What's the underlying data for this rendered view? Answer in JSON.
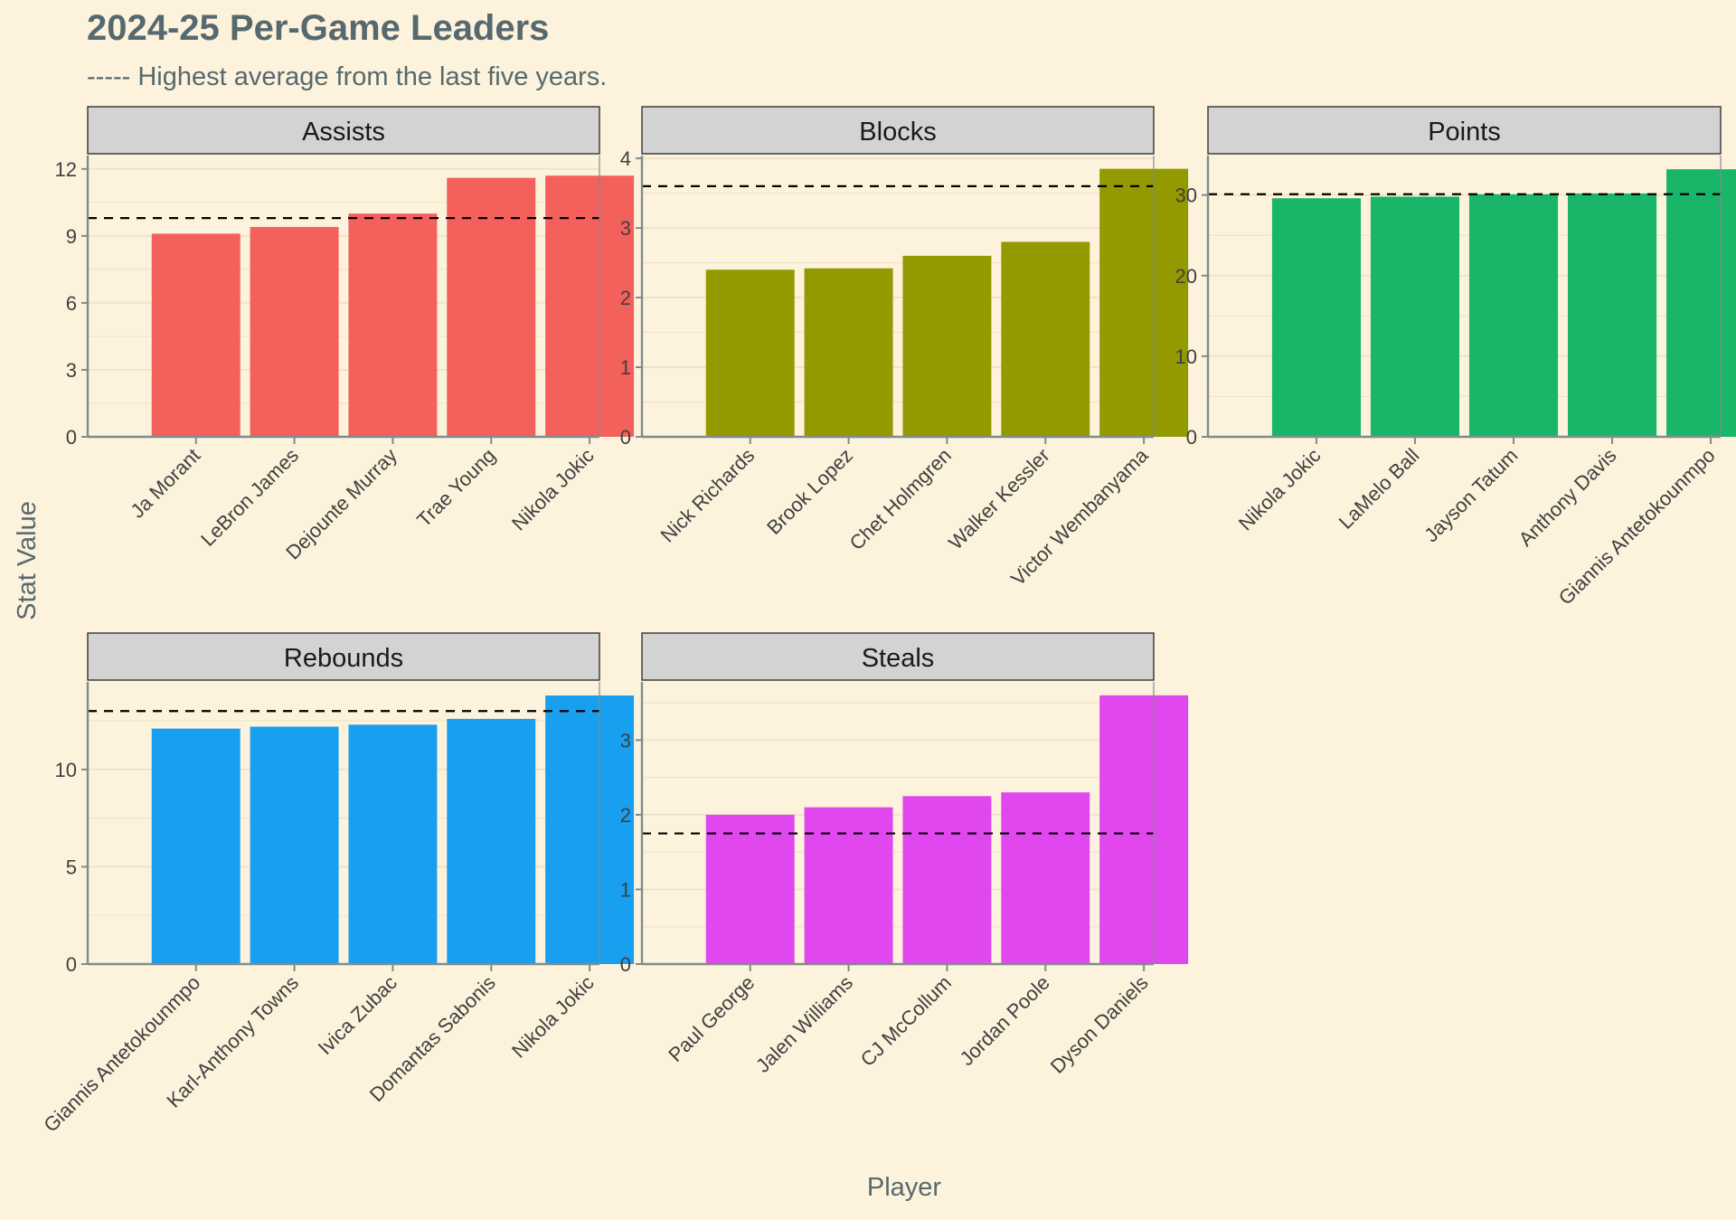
{
  "title": "2024-25 Per-Game Leaders",
  "subtitle": "----- Highest average from the last five years.",
  "xlabel": "Player",
  "ylabel": "Stat Value",
  "colors": {
    "background": "#fdf3dc",
    "text": "#56696f",
    "strip": "#d3d3d3",
    "grid": "#efe4c6",
    "axis": "#7f8c8d"
  },
  "chart_data": [
    {
      "type": "bar",
      "panel": "Assists",
      "color": "#f4605c",
      "categories": [
        "Ja Morant",
        "LeBron James",
        "Dejounte Murray",
        "Trae Young",
        "Nikola Jokic"
      ],
      "values": [
        9.1,
        9.4,
        10.0,
        11.6,
        11.7
      ],
      "reference_line": 9.8,
      "ylim": [
        0,
        12.6
      ],
      "yticks": [
        0,
        3,
        6,
        9,
        12
      ]
    },
    {
      "type": "bar",
      "panel": "Blocks",
      "color": "#939a00",
      "categories": [
        "Nick Richards",
        "Brook Lopez",
        "Chet Holmgren",
        "Walker Kessler",
        "Victor Wembanyama"
      ],
      "values": [
        2.4,
        2.42,
        2.6,
        2.8,
        3.85
      ],
      "reference_line": 3.6,
      "ylim": [
        0,
        4.04
      ],
      "yticks": [
        0,
        1,
        2,
        3,
        4
      ]
    },
    {
      "type": "bar",
      "panel": "Points",
      "color": "#19b66a",
      "categories": [
        "Nikola Jokic",
        "LaMelo Ball",
        "Jayson Tatum",
        "Anthony Davis",
        "Giannis Antetokounmpo"
      ],
      "values": [
        29.6,
        29.8,
        30.1,
        30.2,
        33.2
      ],
      "reference_line": 30.1,
      "ylim": [
        0,
        34.9
      ],
      "yticks": [
        0,
        10,
        20,
        30
      ]
    },
    {
      "type": "bar",
      "panel": "Rebounds",
      "color": "#189ff0",
      "categories": [
        "Giannis Antetokounmpo",
        "Karl-Anthony Towns",
        "Ivica Zubac",
        "Domantas Sabonis",
        "Nikola Jokic"
      ],
      "values": [
        12.1,
        12.2,
        12.3,
        12.6,
        13.8
      ],
      "reference_line": 13.0,
      "ylim": [
        0,
        14.5
      ],
      "yticks": [
        0,
        5,
        10
      ]
    },
    {
      "type": "bar",
      "panel": "Steals",
      "color": "#e047ef",
      "categories": [
        "Paul George",
        "Jalen Williams",
        "CJ McCollum",
        "Jordan Poole",
        "Dyson Daniels"
      ],
      "values": [
        2.0,
        2.1,
        2.25,
        2.3,
        3.6
      ],
      "reference_line": 1.75,
      "ylim": [
        0,
        3.78
      ],
      "yticks": [
        0,
        1,
        2,
        3
      ]
    }
  ]
}
